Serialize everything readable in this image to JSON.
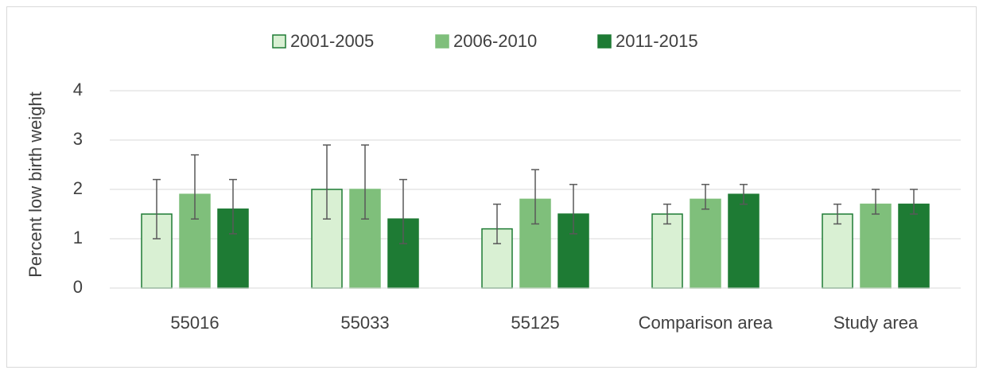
{
  "chart_data": {
    "type": "bar",
    "y_label": "Percent low birth weight",
    "categories": [
      "55016",
      "55033",
      "55125",
      "Comparison area",
      "Study area"
    ],
    "series": [
      {
        "name": "2001-2005",
        "color": "#d9f0d3",
        "edge": "#1e7b34",
        "values": [
          1.5,
          2.0,
          1.2,
          1.5,
          1.5
        ],
        "error_plus": [
          0.7,
          0.9,
          0.5,
          0.2,
          0.2
        ],
        "error_minus": [
          0.5,
          0.6,
          0.3,
          0.2,
          0.2
        ]
      },
      {
        "name": "2006-2010",
        "color": "#7fbf7b",
        "values": [
          1.9,
          2.0,
          1.8,
          1.8,
          1.7
        ],
        "error_plus": [
          0.8,
          0.9,
          0.6,
          0.3,
          0.3
        ],
        "error_minus": [
          0.5,
          0.6,
          0.5,
          0.2,
          0.2
        ]
      },
      {
        "name": "2011-2015",
        "color": "#1e7b34",
        "values": [
          1.6,
          1.4,
          1.5,
          1.9,
          1.7
        ],
        "error_plus": [
          0.6,
          0.8,
          0.6,
          0.2,
          0.3
        ],
        "error_minus": [
          0.5,
          0.5,
          0.4,
          0.2,
          0.2
        ]
      }
    ],
    "ylim": [
      0,
      4
    ],
    "yticks": [
      0,
      1,
      2,
      3,
      4
    ],
    "grid": true,
    "legend": "top",
    "error_color": "#595959"
  }
}
